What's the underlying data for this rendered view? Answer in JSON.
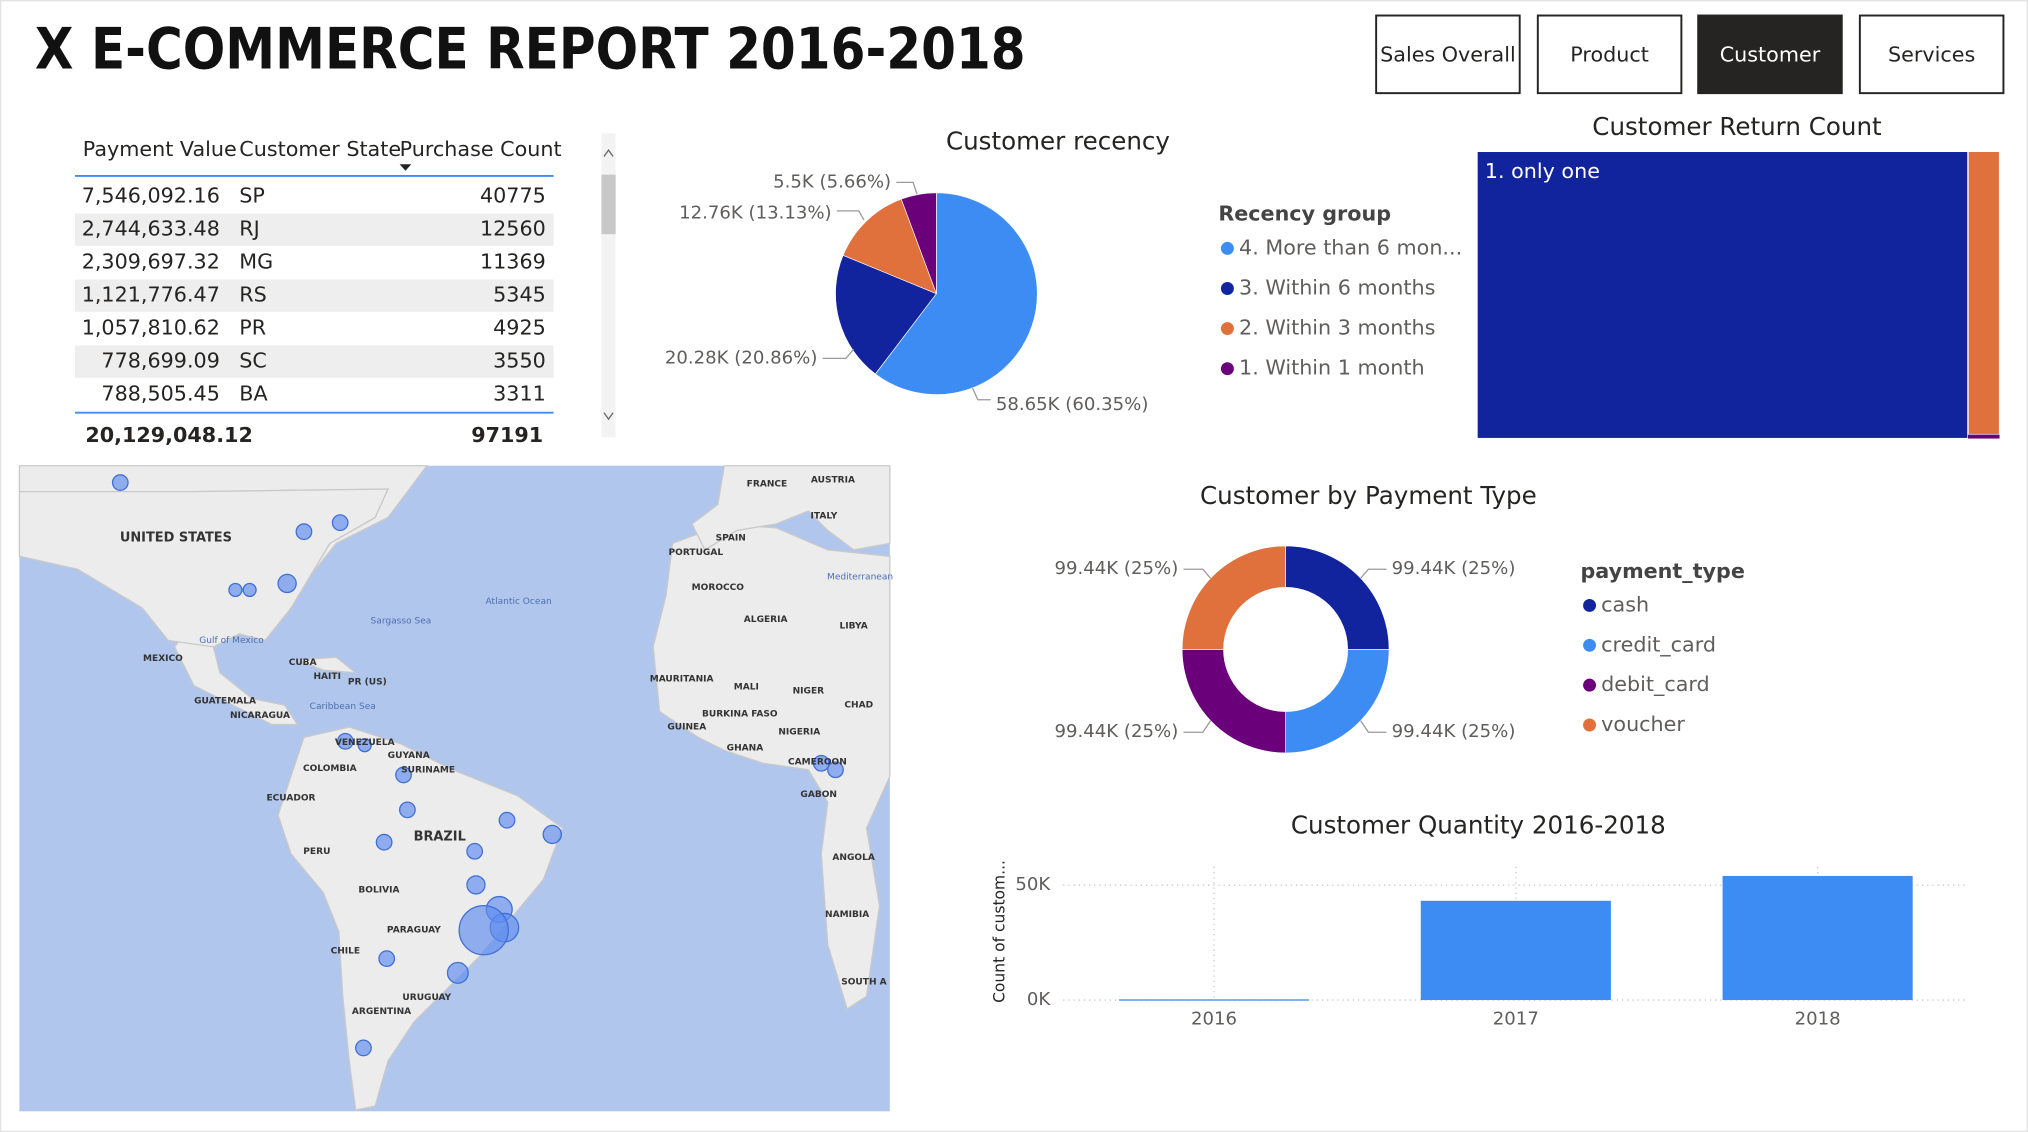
{
  "header": {
    "title": "X E-COMMERCE REPORT 2016-2018"
  },
  "nav": [
    "Sales Overall",
    "Product",
    "Customer",
    "Services"
  ],
  "table": {
    "columns": [
      "Payment Value",
      "Customer State",
      "Purchase Count"
    ],
    "rows": [
      [
        "7,546,092.16",
        "SP",
        "40775"
      ],
      [
        "2,744,633.48",
        "RJ",
        "12560"
      ],
      [
        "2,309,697.32",
        "MG",
        "11369"
      ],
      [
        "1,121,776.47",
        "RS",
        "5345"
      ],
      [
        "1,057,810.62",
        "PR",
        "4925"
      ],
      [
        "778,699.09",
        "SC",
        "3550"
      ],
      [
        "788,505.45",
        "BA",
        "3311"
      ]
    ],
    "total": {
      "payment_value": "20,129,048.12",
      "purchase_count": "97191"
    }
  },
  "map": {
    "labels": [
      "UNITED STATES",
      "MEXICO",
      "Gulf of Mexico",
      "CUBA",
      "HAITI",
      "PR (US)",
      "GUATEMALA",
      "NICARAGUA",
      "Caribbean Sea",
      "VENEZUELA",
      "GUYANA",
      "SURINAME",
      "COLOMBIA",
      "ECUADOR",
      "PERU",
      "BRAZIL",
      "BOLIVIA",
      "PARAGUAY",
      "CHILE",
      "URUGUAY",
      "ARGENTINA",
      "Atlantic Ocean",
      "Sargasso Sea",
      "FRANCE",
      "AUSTRIA",
      "ITALY",
      "SPAIN",
      "PORTUGAL",
      "MOROCCO",
      "ALGERIA",
      "LIBYA",
      "MAURITANIA",
      "MALI",
      "NIGER",
      "CHAD",
      "BURKINA FASO",
      "GUINEA",
      "NIGERIA",
      "GHANA",
      "CAMEROON",
      "GABON",
      "ANGOLA",
      "NAMIBIA",
      "SOUTH A",
      "Mediterranean"
    ]
  },
  "chart_data": [
    {
      "type": "pie",
      "title": "Customer recency",
      "legend_title": "Recency group",
      "categories": [
        "4. More than 6 mon...",
        "3. Within 6 months",
        "2. Within 3 months",
        "1. Within 1 month"
      ],
      "values": [
        58650,
        20280,
        12760,
        5500
      ],
      "value_labels": [
        "58.65K (60.35%)",
        "20.28K (20.86%)",
        "12.76K (13.13%)",
        "5.5K (5.66%)"
      ],
      "colors": [
        "#3d8cf4",
        "#12239e",
        "#e0703c",
        "#6b007b"
      ]
    },
    {
      "type": "treemap",
      "title": "Customer Return Count",
      "categories": [
        "1. only one",
        null,
        null
      ],
      "values": [
        90000,
        5700,
        80
      ],
      "colors": [
        "#12239e",
        "#e0703c",
        "#6b007b"
      ]
    },
    {
      "type": "donut",
      "legend_title": "payment_type",
      "title": "Customer by Payment Type",
      "categories": [
        "cash",
        "credit_card",
        "debit_card",
        "voucher"
      ],
      "values": [
        99440,
        99440,
        99440,
        99440
      ],
      "value_labels": [
        "99.44K (25%)",
        "99.44K (25%)",
        "99.44K (25%)",
        "99.44K (25%)"
      ],
      "colors": [
        "#12239e",
        "#3d8cf4",
        "#6b007b",
        "#e0703c"
      ]
    },
    {
      "type": "bar",
      "title": "Customer Quantity 2016-2018",
      "y_label": "Count of custom...",
      "categories": [
        "2016",
        "2017",
        "2018"
      ],
      "values": [
        300,
        43200,
        54000
      ],
      "color": "#3d8cf4",
      "ylim": [
        0,
        58000
      ],
      "yticks": [
        {
          "value": 0,
          "label": "0K"
        },
        {
          "value": 50000,
          "label": "50K"
        }
      ],
      "grid": true
    }
  ]
}
